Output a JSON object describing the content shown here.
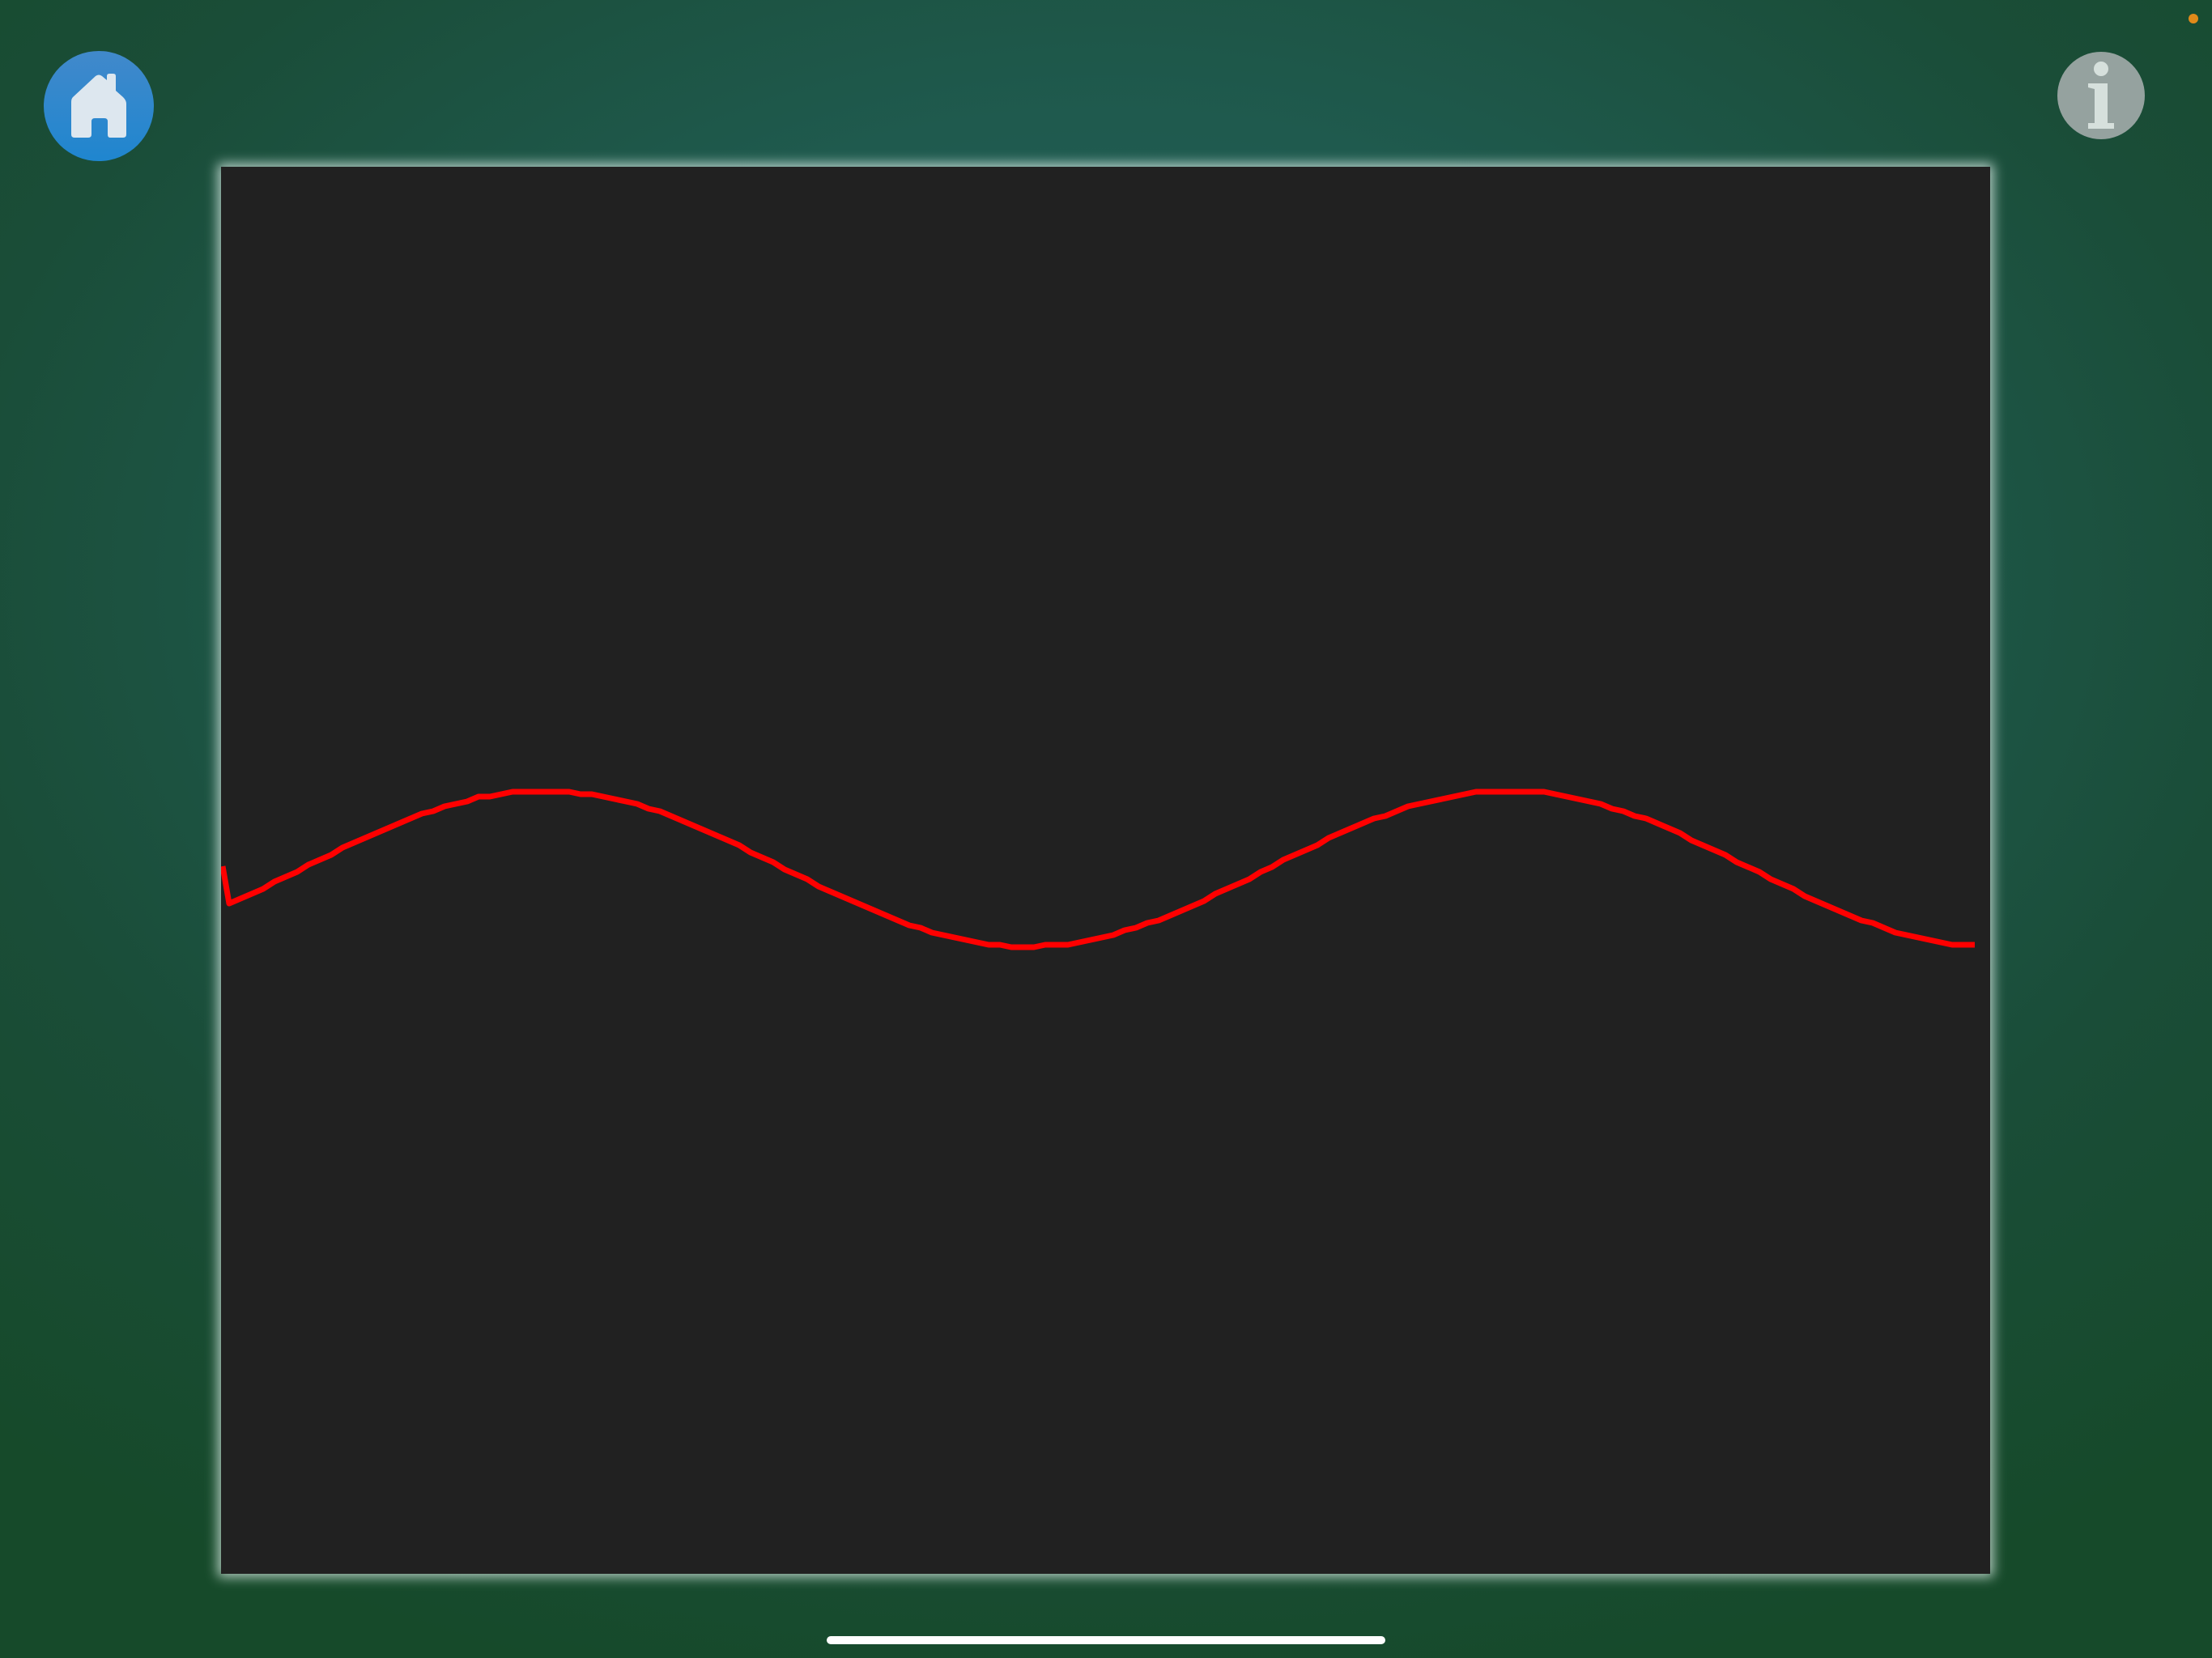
{
  "toolbar": {
    "home_icon": "house-icon",
    "info_icon": "info-icon"
  },
  "scope": {
    "trace_color": "#ff0000",
    "background_color": "#212121"
  },
  "colors": {
    "home_button": "#2f87cd",
    "info_button": "#95a29f",
    "status_dot": "#e08a1a"
  }
}
